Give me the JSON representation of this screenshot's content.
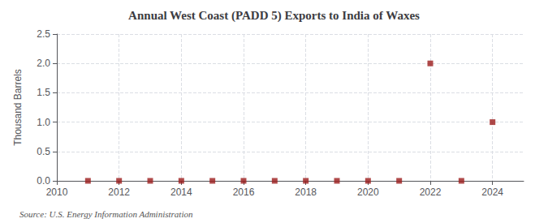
{
  "chart_data": {
    "type": "scatter",
    "title": "Annual West Coast (PADD 5) Exports to India of Waxes",
    "ylabel": "Thousand Barrels",
    "annotations": [
      "Source: U.S. Energy Information Administration"
    ],
    "x": [
      2011,
      2012,
      2013,
      2014,
      2015,
      2016,
      2017,
      2018,
      2019,
      2020,
      2021,
      2022,
      2023,
      2024
    ],
    "values": [
      0,
      0,
      0,
      0,
      0,
      0,
      0,
      0,
      0,
      0,
      0,
      2.0,
      0,
      1.0
    ],
    "color": "#9b1c1c",
    "marker": "square",
    "xlim": [
      2010,
      2025
    ],
    "xticks": [
      2010,
      2012,
      2014,
      2016,
      2018,
      2020,
      2022,
      2024
    ],
    "ylim": [
      0.0,
      2.5
    ],
    "yticks": [
      {
        "value": 0.0,
        "label": "0.0"
      },
      0.5,
      {
        "value": 1.0,
        "label": "1.0"
      },
      1.5,
      {
        "value": 2.0,
        "label": "2.0"
      },
      2.5
    ],
    "grid": true
  }
}
